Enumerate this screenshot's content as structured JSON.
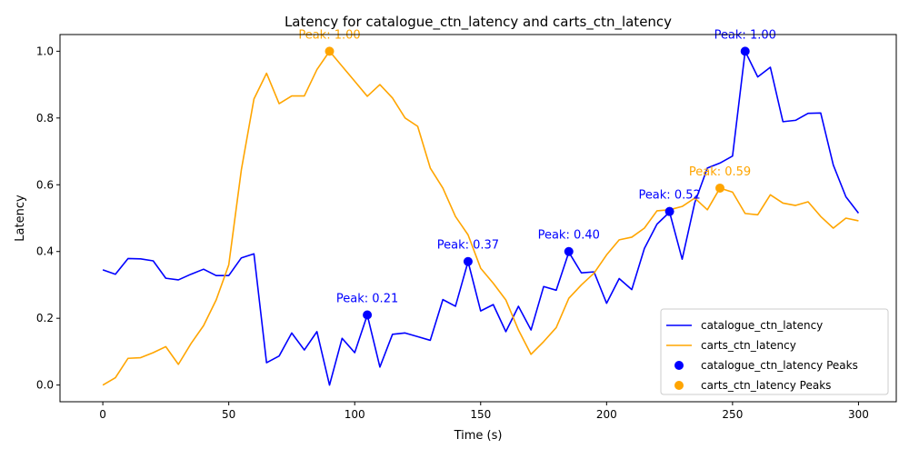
{
  "chart_data": {
    "type": "line",
    "title": "Latency for catalogue_ctn_latency and carts_ctn_latency",
    "xlabel": "Time (s)",
    "ylabel": "Latency",
    "xlim": [
      -17,
      315
    ],
    "ylim": [
      -0.05,
      1.05
    ],
    "xticks": [
      0,
      50,
      100,
      150,
      200,
      250,
      300
    ],
    "yticks": [
      0.0,
      0.2,
      0.4,
      0.6,
      0.8,
      1.0
    ],
    "xtick_labels": [
      "0",
      "50",
      "100",
      "150",
      "200",
      "250",
      "300"
    ],
    "ytick_labels": [
      "0.0",
      "0.2",
      "0.4",
      "0.6",
      "0.8",
      "1.0"
    ],
    "grid": false,
    "legend_position": "lower-right",
    "x": [
      0,
      5,
      10,
      15,
      20,
      25,
      30,
      35,
      40,
      45,
      50,
      55,
      60,
      65,
      70,
      75,
      80,
      85,
      90,
      95,
      100,
      105,
      110,
      115,
      120,
      125,
      130,
      135,
      140,
      145,
      150,
      155,
      160,
      165,
      170,
      175,
      180,
      185,
      190,
      195,
      200,
      205,
      210,
      215,
      220,
      225,
      230,
      235,
      240,
      245,
      250,
      255,
      260,
      265,
      270,
      275,
      280,
      285,
      290,
      295,
      300
    ],
    "series": [
      {
        "name": "catalogue_ctn_latency",
        "color": "#0000ff",
        "values": [
          0.345,
          0.332,
          0.379,
          0.378,
          0.372,
          0.32,
          0.315,
          0.332,
          0.347,
          0.328,
          0.328,
          0.381,
          0.393,
          0.067,
          0.087,
          0.156,
          0.105,
          0.16,
          0.0,
          0.14,
          0.097,
          0.21,
          0.054,
          0.152,
          0.156,
          0.145,
          0.134,
          0.256,
          0.236,
          0.37,
          0.222,
          0.241,
          0.16,
          0.236,
          0.165,
          0.295,
          0.284,
          0.398,
          0.336,
          0.339,
          0.245,
          0.319,
          0.286,
          0.409,
          0.482,
          0.518,
          0.377,
          0.546,
          0.65,
          0.665,
          0.686,
          1.0,
          0.923,
          0.952,
          0.789,
          0.793,
          0.814,
          0.815,
          0.659,
          0.564,
          0.515
        ]
      },
      {
        "name": "carts_ctn_latency",
        "color": "#ffa500",
        "values": [
          0.0,
          0.022,
          0.08,
          0.082,
          0.097,
          0.115,
          0.062,
          0.124,
          0.178,
          0.255,
          0.36,
          0.645,
          0.857,
          0.934,
          0.843,
          0.866,
          0.866,
          0.945,
          1.0,
          0.955,
          0.91,
          0.865,
          0.9,
          0.86,
          0.8,
          0.775,
          0.65,
          0.59,
          0.505,
          0.45,
          0.35,
          0.305,
          0.255,
          0.165,
          0.092,
          0.13,
          0.172,
          0.26,
          0.3,
          0.335,
          0.39,
          0.435,
          0.443,
          0.47,
          0.522,
          0.525,
          0.535,
          0.56,
          0.525,
          0.59,
          0.578,
          0.514,
          0.51,
          0.57,
          0.545,
          0.538,
          0.549,
          0.505,
          0.47,
          0.5,
          0.492
        ]
      }
    ],
    "peaks": [
      {
        "series": "catalogue_ctn_latency",
        "x": 105,
        "y": 0.21,
        "label": "Peak: 0.21"
      },
      {
        "series": "catalogue_ctn_latency",
        "x": 145,
        "y": 0.37,
        "label": "Peak: 0.37"
      },
      {
        "series": "catalogue_ctn_latency",
        "x": 185,
        "y": 0.4,
        "label": "Peak: 0.40"
      },
      {
        "series": "catalogue_ctn_latency",
        "x": 225,
        "y": 0.52,
        "label": "Peak: 0.52"
      },
      {
        "series": "catalogue_ctn_latency",
        "x": 255,
        "y": 1.0,
        "label": "Peak: 1.00"
      },
      {
        "series": "carts_ctn_latency",
        "x": 90,
        "y": 1.0,
        "label": "Peak: 1.00"
      },
      {
        "series": "carts_ctn_latency",
        "x": 245,
        "y": 0.59,
        "label": "Peak: 0.59"
      }
    ],
    "legend": [
      {
        "label": "catalogue_ctn_latency",
        "kind": "line",
        "color": "#0000ff"
      },
      {
        "label": "carts_ctn_latency",
        "kind": "line",
        "color": "#ffa500"
      },
      {
        "label": "catalogue_ctn_latency Peaks",
        "kind": "marker",
        "color": "#0000ff"
      },
      {
        "label": "carts_ctn_latency Peaks",
        "kind": "marker",
        "color": "#ffa500"
      }
    ]
  }
}
